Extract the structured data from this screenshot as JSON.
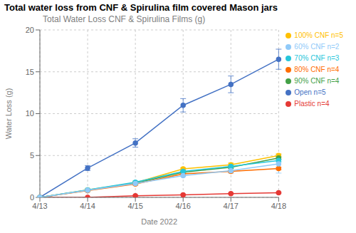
{
  "chart_data": {
    "type": "line",
    "title": "Total water loss from CNF & Spirulina film covered Mason jars",
    "subtitle": "Total Water Loss CNF & Spirulina Films (g)",
    "x_label": "Date 2022",
    "y_label": "Water Loss (g)",
    "categories": [
      "4/13",
      "4/14",
      "4/15",
      "4/16",
      "4/17",
      "4/18"
    ],
    "ylim": [
      0,
      20
    ],
    "yticks": [
      0,
      5,
      10,
      15,
      20
    ],
    "grid": true,
    "legend": "right",
    "series": [
      {
        "name": "Open n=5",
        "color": "#4472C4",
        "marker": "circle",
        "values": [
          0.0,
          3.5,
          6.5,
          11.0,
          13.5,
          16.5
        ],
        "errors": [
          0.0,
          0.3,
          0.5,
          0.8,
          1.0,
          1.2
        ]
      },
      {
        "name": "Plastic n=4",
        "color": "#E53935",
        "marker": "circle",
        "values": [
          0.0,
          0.0,
          0.2,
          0.3,
          0.45,
          0.55
        ],
        "errors": [
          0.0,
          0.0,
          0.05,
          0.05,
          0.05,
          0.05
        ]
      },
      {
        "name": "100% CNF n=5",
        "color": "#FFC000",
        "marker": "circle",
        "values": [
          0.0,
          0.9,
          1.75,
          3.4,
          3.9,
          5.0
        ],
        "errors": [
          0.0,
          0.1,
          0.15,
          0.15,
          0.2,
          0.2
        ]
      },
      {
        "name": "90% CNF n=4",
        "color": "#43A047",
        "marker": "circle",
        "values": [
          0.0,
          0.85,
          1.7,
          3.0,
          3.6,
          4.7
        ],
        "errors": [
          0.0,
          0.1,
          0.15,
          0.1,
          0.15,
          0.15
        ]
      },
      {
        "name": "80% CNF n=4",
        "color": "#FF6D00",
        "marker": "circle",
        "values": [
          0.0,
          0.8,
          1.6,
          2.8,
          3.1,
          3.45
        ],
        "errors": [
          0.0,
          0.1,
          0.15,
          0.15,
          0.15,
          0.15
        ]
      },
      {
        "name": "70% CNF n=3",
        "color": "#26C6DA",
        "marker": "circle",
        "values": [
          0.0,
          0.9,
          1.8,
          3.1,
          3.7,
          4.4
        ],
        "errors": [
          0.0,
          0.1,
          0.15,
          0.1,
          0.15,
          0.15
        ]
      },
      {
        "name": "60% CNF n=2",
        "color": "#90CAF9",
        "marker": "circle",
        "values": [
          0.0,
          0.85,
          1.65,
          2.6,
          3.2,
          4.0
        ],
        "errors": [
          0.0,
          0.1,
          0.15,
          0.1,
          0.3,
          1.1
        ]
      }
    ]
  }
}
